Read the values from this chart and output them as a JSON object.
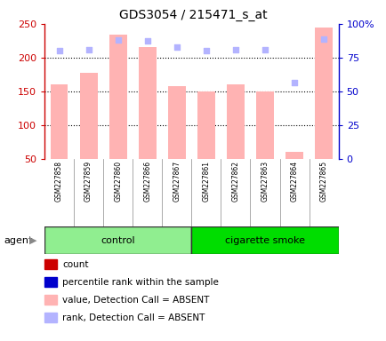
{
  "title": "GDS3054 / 215471_s_at",
  "samples": [
    "GSM227858",
    "GSM227859",
    "GSM227860",
    "GSM227866",
    "GSM227867",
    "GSM227861",
    "GSM227862",
    "GSM227863",
    "GSM227864",
    "GSM227865"
  ],
  "bar_values": [
    160,
    177,
    234,
    216,
    157,
    149,
    160,
    150,
    60,
    245
  ],
  "rank_dots": [
    210,
    212,
    226,
    225,
    215,
    210,
    212,
    212,
    163,
    228
  ],
  "bar_color_absent": "#ffb3b3",
  "rank_color_absent": "#b3b3ff",
  "ylim_left": [
    50,
    250
  ],
  "ylim_right": [
    0,
    100
  ],
  "yticks_left": [
    50,
    100,
    150,
    200,
    250
  ],
  "ytick_labels_right": [
    "0",
    "25",
    "50",
    "75",
    "100%"
  ],
  "yticks_right": [
    0,
    25,
    50,
    75,
    100
  ],
  "groups": [
    {
      "label": "control",
      "indices": [
        0,
        1,
        2,
        3,
        4
      ],
      "color": "#90ee90"
    },
    {
      "label": "cigarette smoke",
      "indices": [
        5,
        6,
        7,
        8,
        9
      ],
      "color": "#00dd00"
    }
  ],
  "legend": [
    {
      "color": "#cc0000",
      "label": "count"
    },
    {
      "color": "#0000cc",
      "label": "percentile rank within the sample"
    },
    {
      "color": "#ffb3b3",
      "label": "value, Detection Call = ABSENT"
    },
    {
      "color": "#b3b3ff",
      "label": "rank, Detection Call = ABSENT"
    }
  ],
  "background_color": "#ffffff",
  "tick_label_area_color": "#cccccc",
  "left_yaxis_color": "#cc0000",
  "right_yaxis_color": "#0000cc",
  "grid_dotted_at": [
    100,
    150,
    200
  ]
}
